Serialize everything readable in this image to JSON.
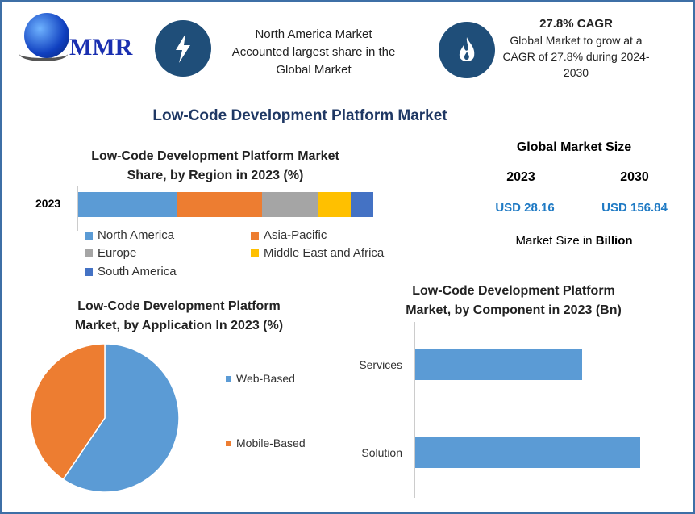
{
  "logo": {
    "text": "MMR"
  },
  "header": {
    "highlight1": {
      "icon": "lightning-icon",
      "lines": [
        "North America Market",
        "Accounted largest share in the",
        "Global Market"
      ]
    },
    "highlight2": {
      "icon": "flame-icon",
      "title": "27.8% CAGR",
      "lines": [
        "Global Market to grow at a",
        "CAGR of 27.8% during 2024-",
        "2030"
      ]
    }
  },
  "main_title": "Low-Code Development Platform Market",
  "market_size": {
    "title": "Global Market Size",
    "years": [
      "2023",
      "2030"
    ],
    "values": [
      "USD 28.16",
      "USD 156.84"
    ],
    "note_prefix": "Market Size in ",
    "note_bold": "Billion"
  },
  "colors": {
    "north_america": "#5b9bd5",
    "asia_pacific": "#ed7d31",
    "europe": "#a5a5a5",
    "mea": "#ffc000",
    "south_america": "#4472c4",
    "accent": "#1f4e79",
    "title": "#1f3864"
  },
  "chart_data": [
    {
      "type": "bar",
      "orientation": "horizontal-stacked",
      "title_lines": [
        "Low-Code Development Platform Market",
        "Share, by Region in 2023 (%)"
      ],
      "categories": [
        "2023"
      ],
      "series": [
        {
          "name": "North America",
          "values": [
            33.3
          ],
          "color": "#5b9bd5"
        },
        {
          "name": "Asia-Pacific",
          "values": [
            29.0
          ],
          "color": "#ed7d31"
        },
        {
          "name": "Europe",
          "values": [
            18.8
          ],
          "color": "#a5a5a5"
        },
        {
          "name": "Middle East and Africa",
          "values": [
            11.3
          ],
          "color": "#ffc000"
        },
        {
          "name": "South America",
          "values": [
            7.6
          ],
          "color": "#4472c4"
        }
      ],
      "legend": "bottom"
    },
    {
      "type": "pie",
      "title_lines": [
        "Low-Code Development Platform",
        "Market, by Application In 2023 (%)"
      ],
      "labels": [
        "Web-Based",
        "Mobile-Based"
      ],
      "values": [
        59.5,
        40.5
      ],
      "colors": [
        "#5b9bd5",
        "#ed7d31"
      ],
      "legend": "right"
    },
    {
      "type": "bar",
      "orientation": "horizontal",
      "title_lines": [
        "Low-Code Development Platform",
        "Market, by Component in 2023 (Bn)"
      ],
      "categories": [
        "Services",
        "Solution"
      ],
      "values": [
        12.0,
        16.2
      ],
      "color": "#5b9bd5"
    }
  ]
}
